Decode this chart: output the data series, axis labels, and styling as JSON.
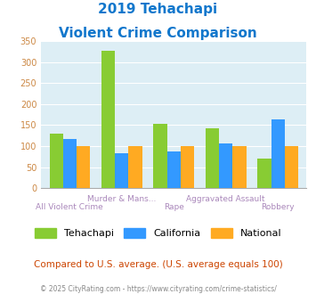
{
  "title_line1": "2019 Tehachapi",
  "title_line2": "Violent Crime Comparison",
  "categories": [
    "All Violent Crime",
    "Murder & Mans...",
    "Rape",
    "Aggravated Assault",
    "Robbery"
  ],
  "tehachapi": [
    130,
    327,
    153,
    142,
    70
  ],
  "california": [
    117,
    84,
    87,
    107,
    163
  ],
  "national": [
    100,
    100,
    100,
    100,
    100
  ],
  "color_tehachapi": "#88cc33",
  "color_california": "#3399ff",
  "color_national": "#ffaa22",
  "ylim": [
    0,
    350
  ],
  "yticks": [
    0,
    50,
    100,
    150,
    200,
    250,
    300,
    350
  ],
  "bg_color": "#ddeef5",
  "footer_text": "Compared to U.S. average. (U.S. average equals 100)",
  "credit_text": "© 2025 CityRating.com - https://www.cityrating.com/crime-statistics/",
  "title_color": "#1177cc",
  "footer_color": "#cc4400",
  "credit_color": "#888888",
  "label_color": "#aa88bb",
  "ytick_color": "#cc8844"
}
